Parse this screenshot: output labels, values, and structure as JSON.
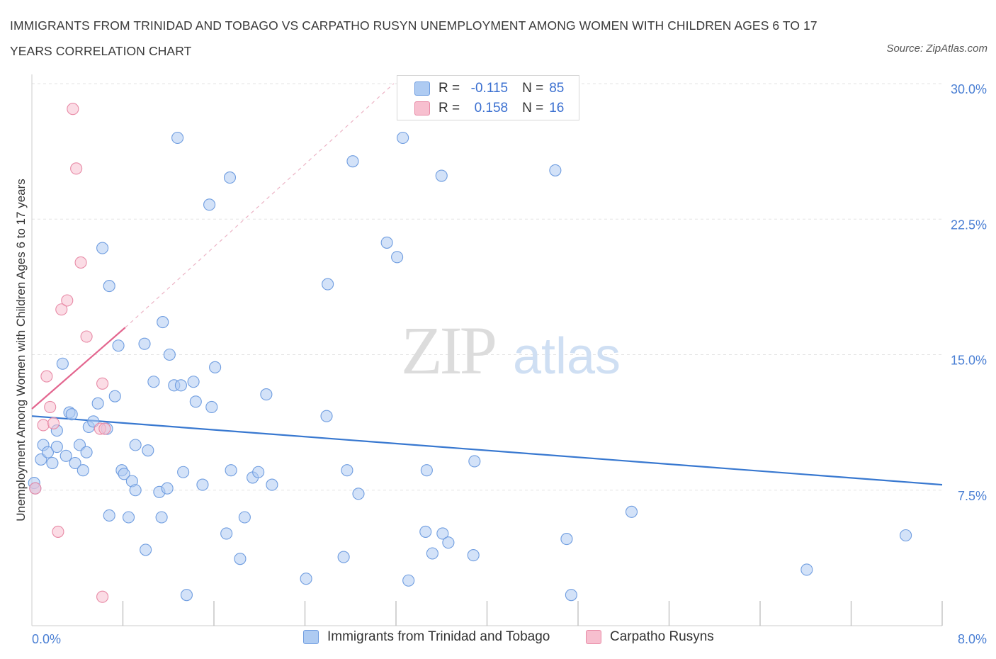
{
  "title": "IMMIGRANTS FROM TRINIDAD AND TOBAGO VS CARPATHO RUSYN UNEMPLOYMENT AMONG WOMEN WITH CHILDREN AGES 6 TO 17 YEARS CORRELATION CHART",
  "source": "Source: ZipAtlas.com",
  "watermark": {
    "zip": "ZIP",
    "atlas": "atlas"
  },
  "colors": {
    "blue_fill": "#aecbf2",
    "blue_stroke": "#6f9de0",
    "blue_line": "#3878d0",
    "pink_fill": "#f7bfcf",
    "pink_stroke": "#e88aa6",
    "pink_line": "#e3668f",
    "tick_label": "#4a7fd4",
    "grid": "#e3e3e3"
  },
  "legend": {
    "r_label": "R =",
    "n_label": "N =",
    "rows": [
      {
        "series": "blue",
        "r": "-0.115",
        "n": "85"
      },
      {
        "series": "pink",
        "r": "0.158",
        "n": "16"
      }
    ]
  },
  "chart_data": {
    "type": "scatter",
    "title": "IMMIGRANTS FROM TRINIDAD AND TOBAGO VS CARPATHO RUSYN UNEMPLOYMENT AMONG WOMEN WITH CHILDREN AGES 6 TO 17 YEARS CORRELATION CHART",
    "xlabel": "",
    "ylabel": "Unemployment Among Women with Children Ages 6 to 17 years",
    "xlim": [
      0,
      8
    ],
    "ylim": [
      0,
      30
    ],
    "x_tick_labels": [
      "0.0%",
      "8.0%"
    ],
    "y_ticks": [
      7.5,
      15,
      22.5,
      30
    ],
    "y_tick_labels": [
      "7.5%",
      "15.0%",
      "22.5%",
      "30.0%"
    ],
    "grid": true,
    "legend_position": "bottom",
    "series": [
      {
        "name": "Immigrants from Trinidad and Tobago",
        "color": "blue",
        "trend": {
          "x": [
            0,
            8
          ],
          "y": [
            11.6,
            7.8
          ]
        },
        "points": [
          [
            0.02,
            7.9
          ],
          [
            0.03,
            7.6
          ],
          [
            0.08,
            9.2
          ],
          [
            0.1,
            10.0
          ],
          [
            0.14,
            9.6
          ],
          [
            0.18,
            9.0
          ],
          [
            0.22,
            10.8
          ],
          [
            0.22,
            9.9
          ],
          [
            0.27,
            14.5
          ],
          [
            0.3,
            9.4
          ],
          [
            0.33,
            11.8
          ],
          [
            0.35,
            11.7
          ],
          [
            0.38,
            9.0
          ],
          [
            0.42,
            10.0
          ],
          [
            0.45,
            8.6
          ],
          [
            0.48,
            9.6
          ],
          [
            0.5,
            11.0
          ],
          [
            0.54,
            11.3
          ],
          [
            0.58,
            12.3
          ],
          [
            0.62,
            20.9
          ],
          [
            0.66,
            10.9
          ],
          [
            0.68,
            18.8
          ],
          [
            0.68,
            6.1
          ],
          [
            0.73,
            12.7
          ],
          [
            0.76,
            15.5
          ],
          [
            0.79,
            8.6
          ],
          [
            0.81,
            8.4
          ],
          [
            0.85,
            6.0
          ],
          [
            0.88,
            8.0
          ],
          [
            0.91,
            7.5
          ],
          [
            0.91,
            10.0
          ],
          [
            0.99,
            15.6
          ],
          [
            1.0,
            4.2
          ],
          [
            1.02,
            9.7
          ],
          [
            1.07,
            13.5
          ],
          [
            1.12,
            7.4
          ],
          [
            1.14,
            6.0
          ],
          [
            1.15,
            16.8
          ],
          [
            1.19,
            7.6
          ],
          [
            1.21,
            15.0
          ],
          [
            1.25,
            13.3
          ],
          [
            1.28,
            27.0
          ],
          [
            1.31,
            13.3
          ],
          [
            1.33,
            8.5
          ],
          [
            1.36,
            1.7
          ],
          [
            1.42,
            13.5
          ],
          [
            1.44,
            12.4
          ],
          [
            1.5,
            7.8
          ],
          [
            1.56,
            23.3
          ],
          [
            1.58,
            12.1
          ],
          [
            1.61,
            14.3
          ],
          [
            1.71,
            5.1
          ],
          [
            1.74,
            24.8
          ],
          [
            1.75,
            8.6
          ],
          [
            1.83,
            3.7
          ],
          [
            1.87,
            6.0
          ],
          [
            1.94,
            8.2
          ],
          [
            1.99,
            8.5
          ],
          [
            2.06,
            12.8
          ],
          [
            2.11,
            7.8
          ],
          [
            2.41,
            2.6
          ],
          [
            2.59,
            11.6
          ],
          [
            2.6,
            18.9
          ],
          [
            2.74,
            3.8
          ],
          [
            2.77,
            8.6
          ],
          [
            2.82,
            25.7
          ],
          [
            2.87,
            7.3
          ],
          [
            3.12,
            21.2
          ],
          [
            3.21,
            20.4
          ],
          [
            3.26,
            27.0
          ],
          [
            3.31,
            2.5
          ],
          [
            3.46,
            5.2
          ],
          [
            3.47,
            8.6
          ],
          [
            3.52,
            4.0
          ],
          [
            3.6,
            24.9
          ],
          [
            3.61,
            5.1
          ],
          [
            3.66,
            4.6
          ],
          [
            3.88,
            3.9
          ],
          [
            3.89,
            9.1
          ],
          [
            4.6,
            25.2
          ],
          [
            4.7,
            4.8
          ],
          [
            4.74,
            1.7
          ],
          [
            5.27,
            6.3
          ],
          [
            6.81,
            3.1
          ],
          [
            7.68,
            5.0
          ]
        ]
      },
      {
        "name": "Carpatho Rusyns",
        "color": "pink",
        "trend": {
          "x": [
            0,
            0.82
          ],
          "y": [
            12.0,
            16.5
          ]
        },
        "trend_extension": {
          "x": [
            0.82,
            3.18
          ],
          "y": [
            16.5,
            30.0
          ]
        },
        "points": [
          [
            0.03,
            7.6
          ],
          [
            0.1,
            11.1
          ],
          [
            0.13,
            13.8
          ],
          [
            0.16,
            12.1
          ],
          [
            0.19,
            11.2
          ],
          [
            0.23,
            5.2
          ],
          [
            0.26,
            17.5
          ],
          [
            0.31,
            18.0
          ],
          [
            0.36,
            28.6
          ],
          [
            0.39,
            25.3
          ],
          [
            0.43,
            20.1
          ],
          [
            0.48,
            16.0
          ],
          [
            0.6,
            10.9
          ],
          [
            0.62,
            13.4
          ],
          [
            0.62,
            1.6
          ],
          [
            0.64,
            10.9
          ]
        ]
      }
    ]
  },
  "bottom_legend": [
    {
      "label": "Immigrants from Trinidad and Tobago",
      "series": "blue"
    },
    {
      "label": "Carpatho Rusyns",
      "series": "pink"
    }
  ]
}
